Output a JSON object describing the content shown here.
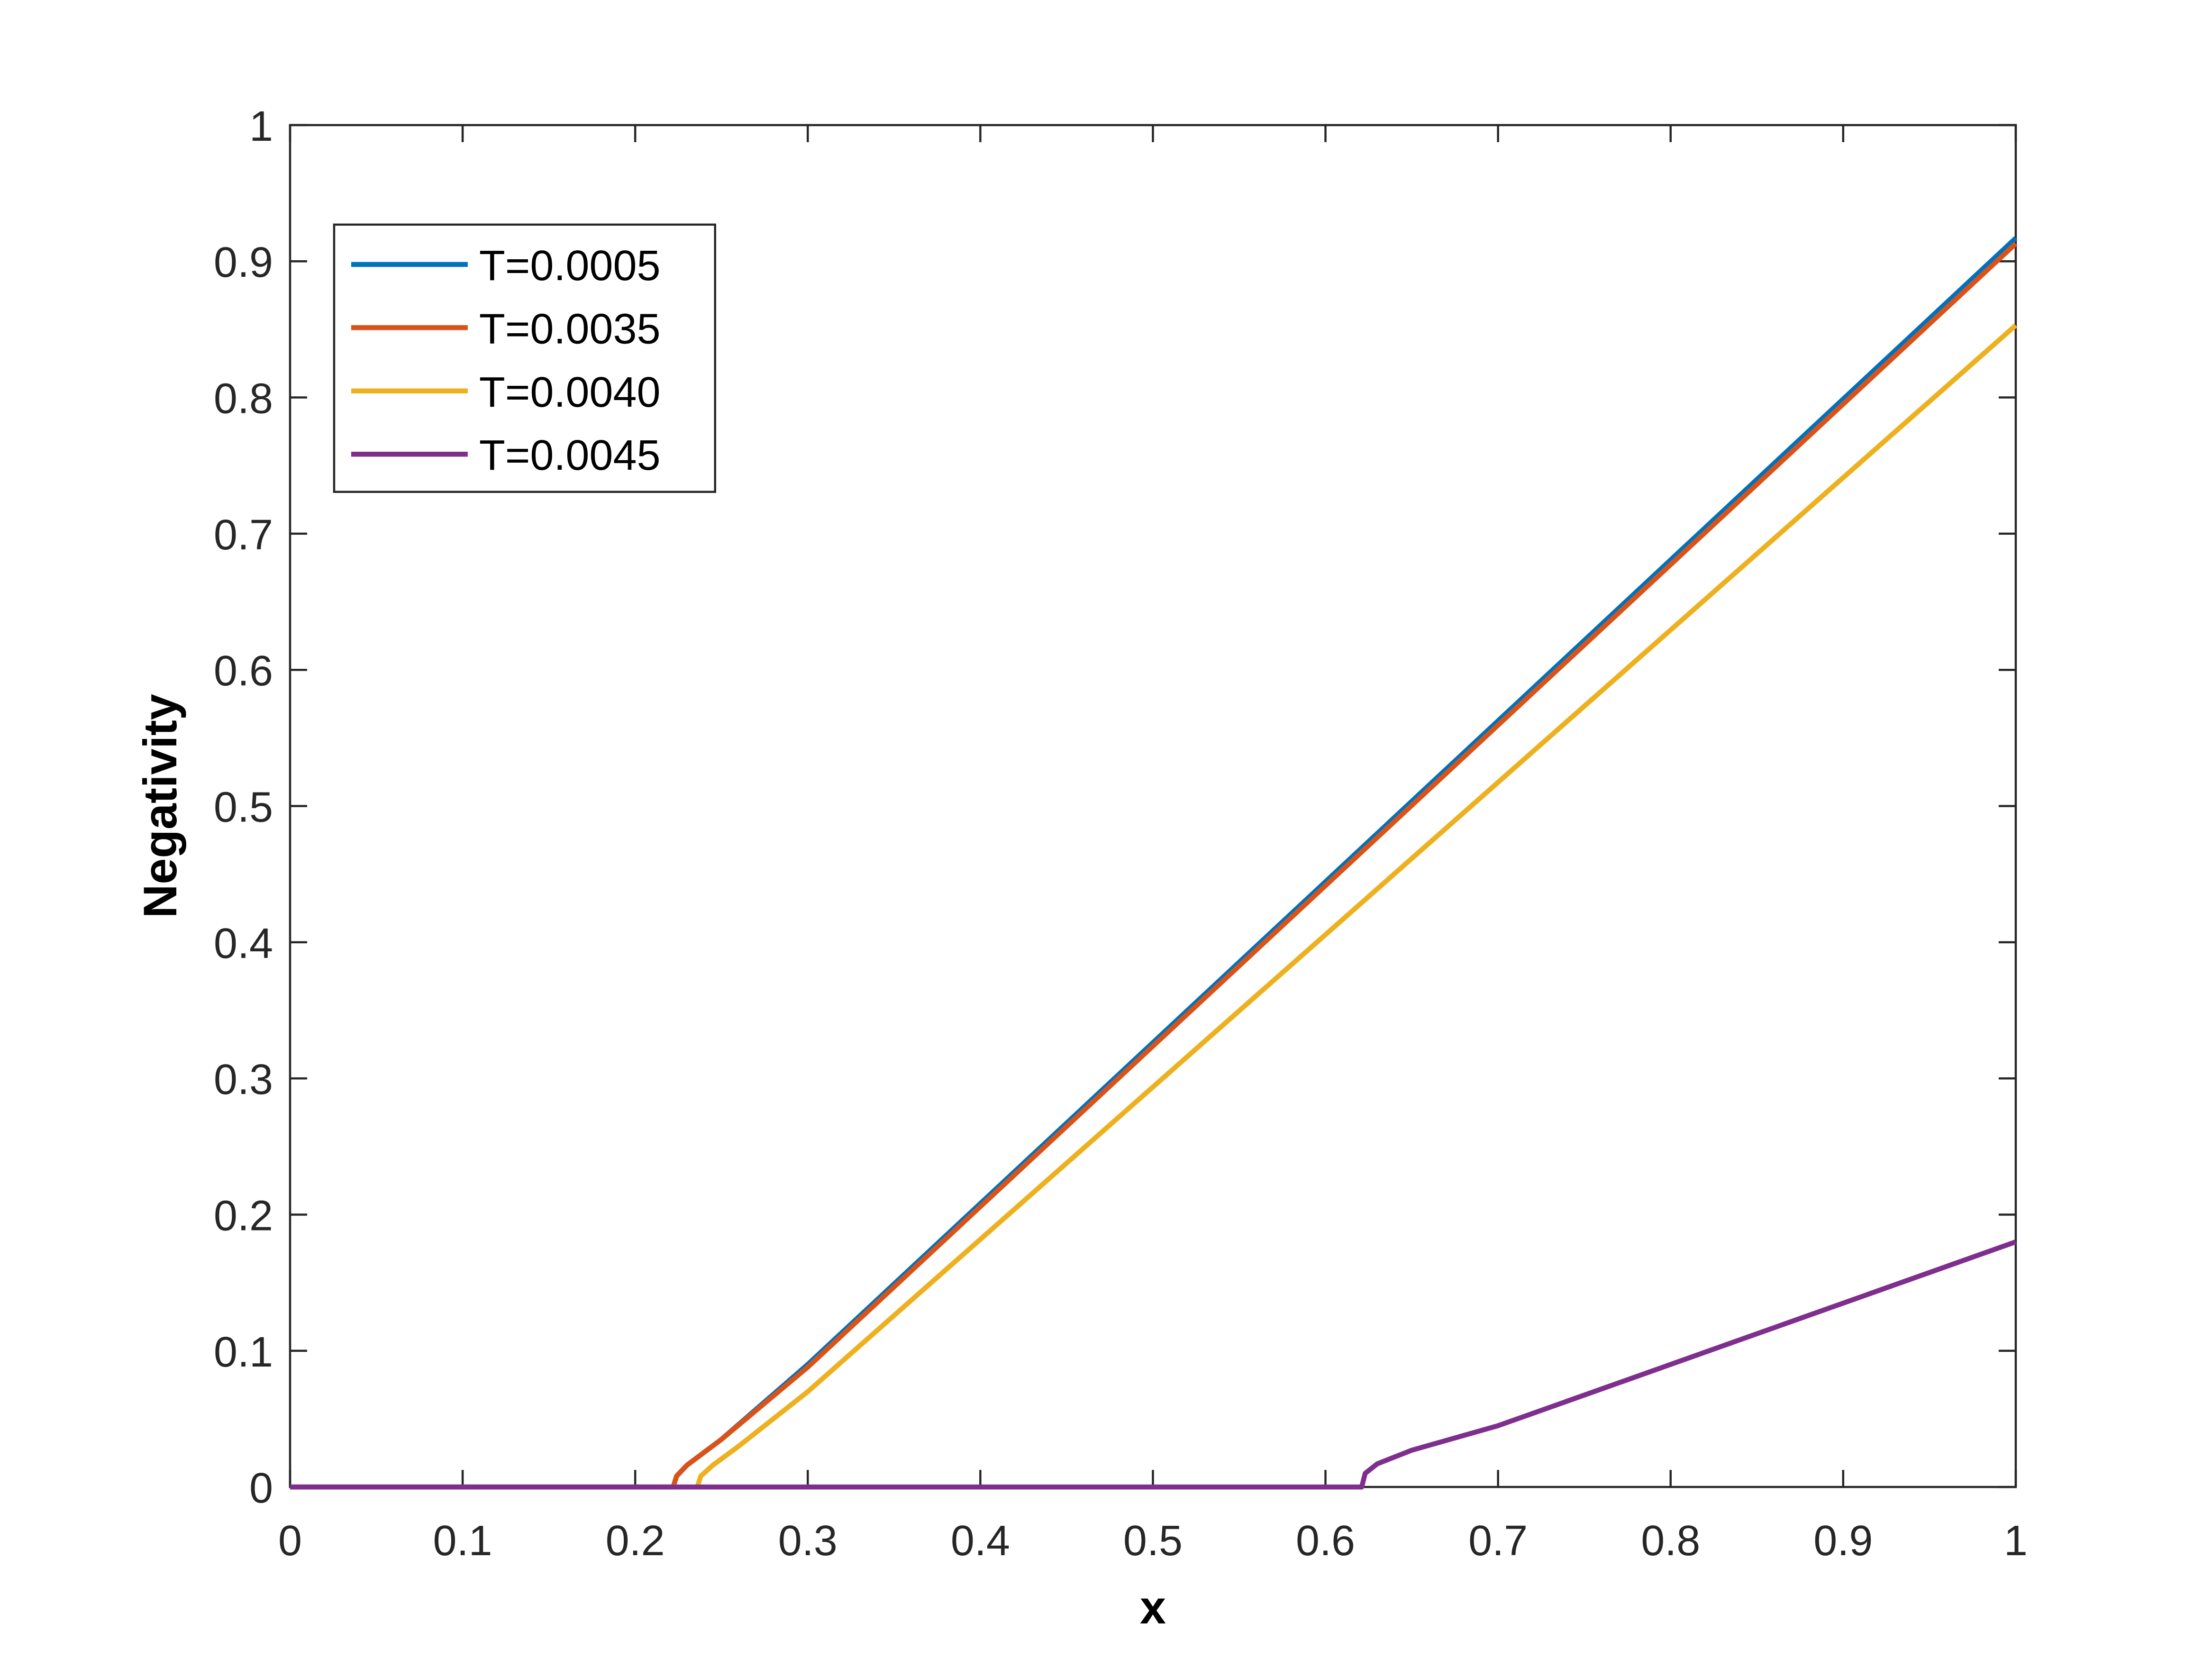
{
  "chart_data": {
    "type": "line",
    "xlabel": "x",
    "ylabel": "Negativity",
    "xlim": [
      0,
      1
    ],
    "ylim": [
      0,
      1
    ],
    "xticks": [
      0,
      0.1,
      0.2,
      0.3,
      0.4,
      0.5,
      0.6,
      0.7,
      0.8,
      0.9,
      1
    ],
    "yticks": [
      0,
      0.1,
      0.2,
      0.3,
      0.4,
      0.5,
      0.6,
      0.7,
      0.8,
      0.9,
      1
    ],
    "legend": "upper left",
    "series": [
      {
        "name": "T=0.0005",
        "color": "#0072bd",
        "x": [
          0,
          0.222,
          0.224,
          0.23,
          0.25,
          0.3,
          1
        ],
        "values": [
          0,
          0,
          0.008,
          0.016,
          0.035,
          0.09,
          0.917
        ]
      },
      {
        "name": "T=0.0035",
        "color": "#d95319",
        "x": [
          0,
          0.222,
          0.224,
          0.23,
          0.25,
          0.3,
          1
        ],
        "values": [
          0,
          0,
          0.008,
          0.016,
          0.035,
          0.088,
          0.913
        ]
      },
      {
        "name": "T=0.0040",
        "color": "#edb120",
        "x": [
          0,
          0.236,
          0.238,
          0.245,
          0.26,
          0.3,
          1
        ],
        "values": [
          0,
          0,
          0.008,
          0.016,
          0.03,
          0.07,
          0.853
        ]
      },
      {
        "name": "T=0.0045",
        "color": "#7e2f8e",
        "x": [
          0,
          0.621,
          0.623,
          0.63,
          0.65,
          0.7,
          1
        ],
        "values": [
          0,
          0,
          0.01,
          0.017,
          0.027,
          0.045,
          0.18
        ]
      }
    ]
  }
}
